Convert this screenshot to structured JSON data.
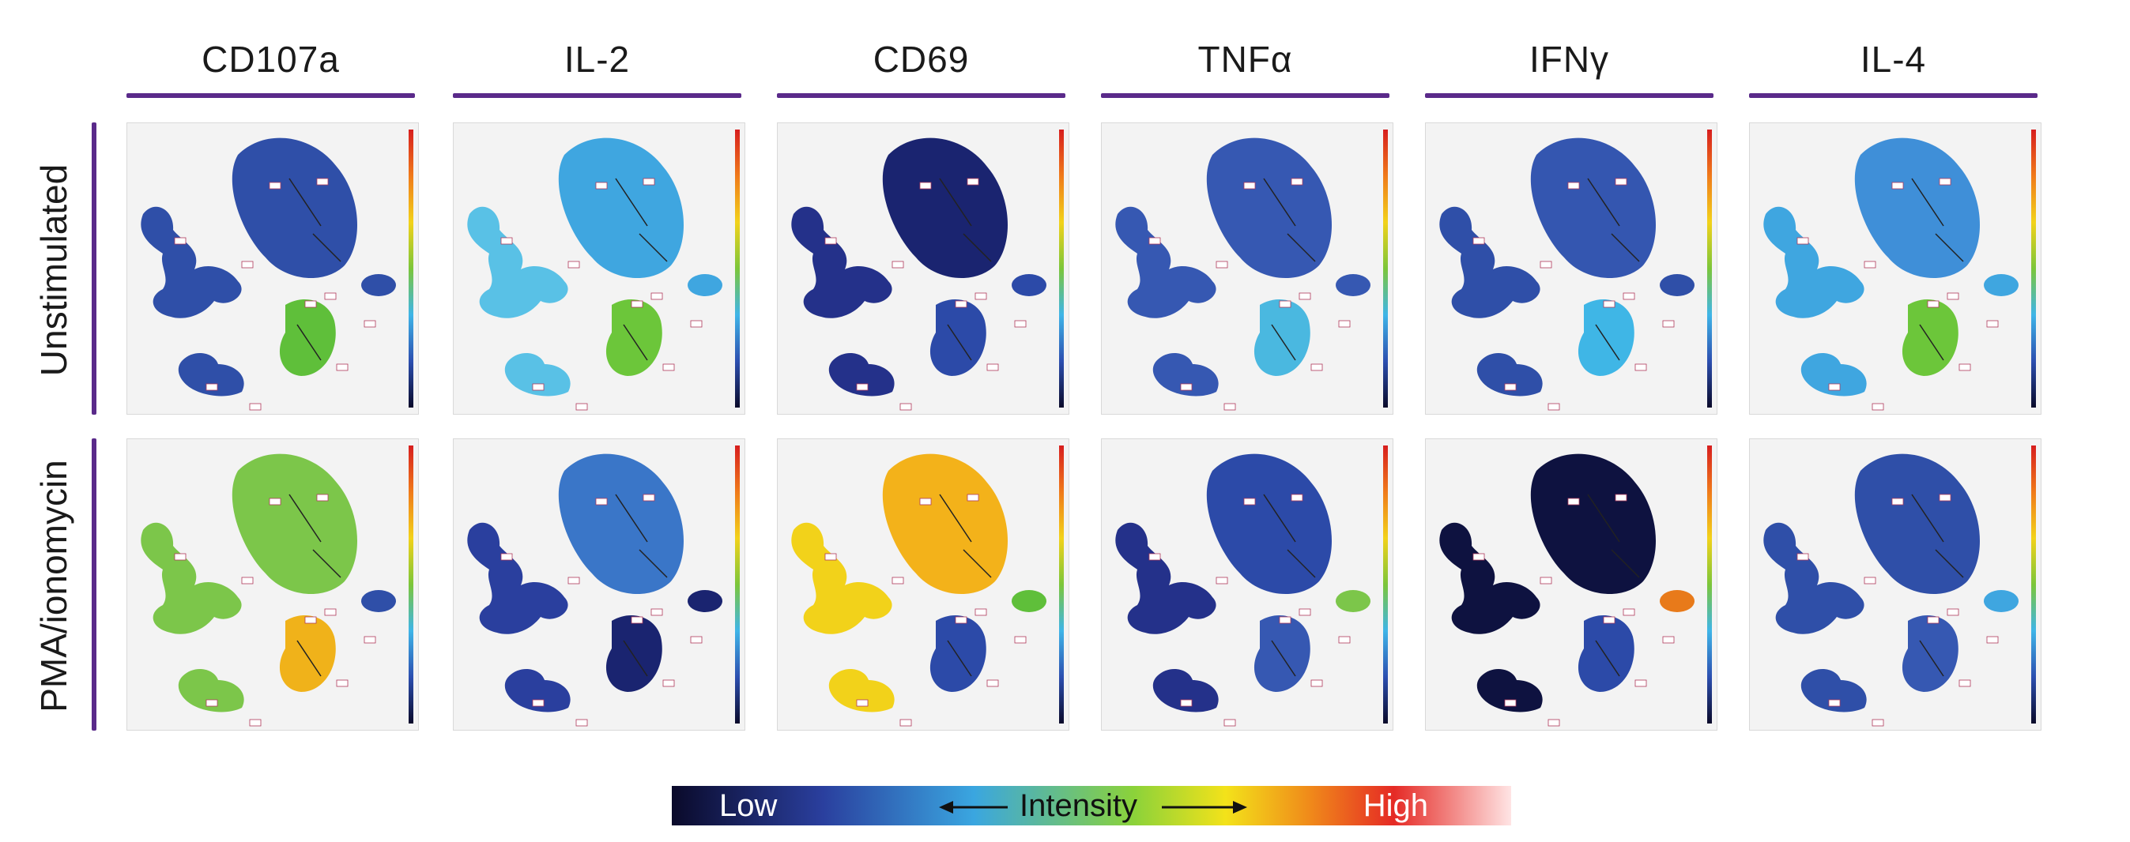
{
  "columns": [
    "CD107a",
    "IL-2",
    "CD69",
    "TNFα",
    "IFNγ",
    "IL-4"
  ],
  "rows": [
    "Unstimulated",
    "PMA/ionomycin"
  ],
  "legend": {
    "low": "Low",
    "middle": "Intensity",
    "high": "High"
  },
  "colors": {
    "accent": "#5a2a8a",
    "panel_bg": "#f3f3f3"
  },
  "panels": {
    "unstimulated": [
      {
        "marker": "CD107a",
        "main": "#2f4fa8",
        "left": "#2f4fa8",
        "bottom": "#5fbf3a",
        "small": "#2f4fa8"
      },
      {
        "marker": "IL-2",
        "main": "#3fa6e0",
        "left": "#59c1e6",
        "bottom": "#6cc63a",
        "small": "#3fa6e0"
      },
      {
        "marker": "CD69",
        "main": "#1a2470",
        "left": "#24318a",
        "bottom": "#2c4aa8",
        "small": "#2c4aa8"
      },
      {
        "marker": "TNFα",
        "main": "#3658b2",
        "left": "#3658b2",
        "bottom": "#4ab8e0",
        "small": "#3658b2"
      },
      {
        "marker": "IFNγ",
        "main": "#3456b0",
        "left": "#2f4fa8",
        "bottom": "#3fb6e6",
        "small": "#2f4fa8"
      },
      {
        "marker": "IL-4",
        "main": "#3f8fd8",
        "left": "#3fa6e0",
        "bottom": "#6cc63a",
        "small": "#3fa6e0"
      }
    ],
    "stimulated": [
      {
        "marker": "CD107a",
        "main": "#7cc64a",
        "left": "#7cc64a",
        "bottom": "#f0b21a",
        "small": "#2f4fa8"
      },
      {
        "marker": "IL-2",
        "main": "#3a76c8",
        "left": "#2a3f9e",
        "bottom": "#1a2470",
        "small": "#1a2470"
      },
      {
        "marker": "CD69",
        "main": "#f3b21a",
        "left": "#f2d21a",
        "bottom": "#2c4aa8",
        "small": "#5fbf3a"
      },
      {
        "marker": "TNFα",
        "main": "#2c4aa8",
        "left": "#24318a",
        "bottom": "#3658b2",
        "small": "#7cc64a"
      },
      {
        "marker": "IFNγ",
        "main": "#0e1240",
        "left": "#0e1240",
        "bottom": "#2c4aa8",
        "small": "#e87a1a"
      },
      {
        "marker": "IL-4",
        "main": "#2f4fa8",
        "left": "#2f4fa8",
        "bottom": "#3658b2",
        "small": "#3fa6e0"
      }
    ]
  }
}
